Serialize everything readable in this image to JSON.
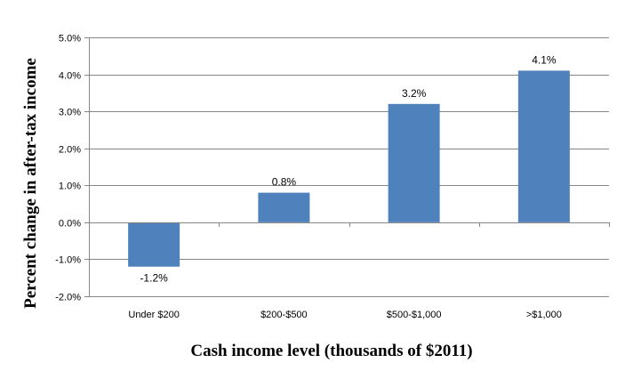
{
  "chart_data": {
    "type": "bar",
    "title": "",
    "xlabel": "Cash income level (thousands of $2011)",
    "ylabel": "Percent change in after-tax income",
    "categories": [
      "Under $200",
      "$200-$500",
      "$500-$1,000",
      ">$1,000"
    ],
    "series": [
      {
        "values": [
          -1.2,
          0.8,
          3.2,
          4.1
        ],
        "labels": [
          "-1.2%",
          "0.8%",
          "3.2%",
          "4.1%"
        ]
      }
    ],
    "ylim": [
      -2.0,
      5.0
    ],
    "yticks": [
      -2.0,
      -1.0,
      0.0,
      1.0,
      2.0,
      3.0,
      4.0,
      5.0
    ],
    "ytick_labels": [
      "-2.0%",
      "-1.0%",
      "0.0%",
      "1.0%",
      "2.0%",
      "3.0%",
      "4.0%",
      "5.0%"
    ],
    "grid": true,
    "legend": "none",
    "colors": {
      "bar": "#4f81bd",
      "grid": "#868686",
      "axis": "#868686"
    }
  }
}
